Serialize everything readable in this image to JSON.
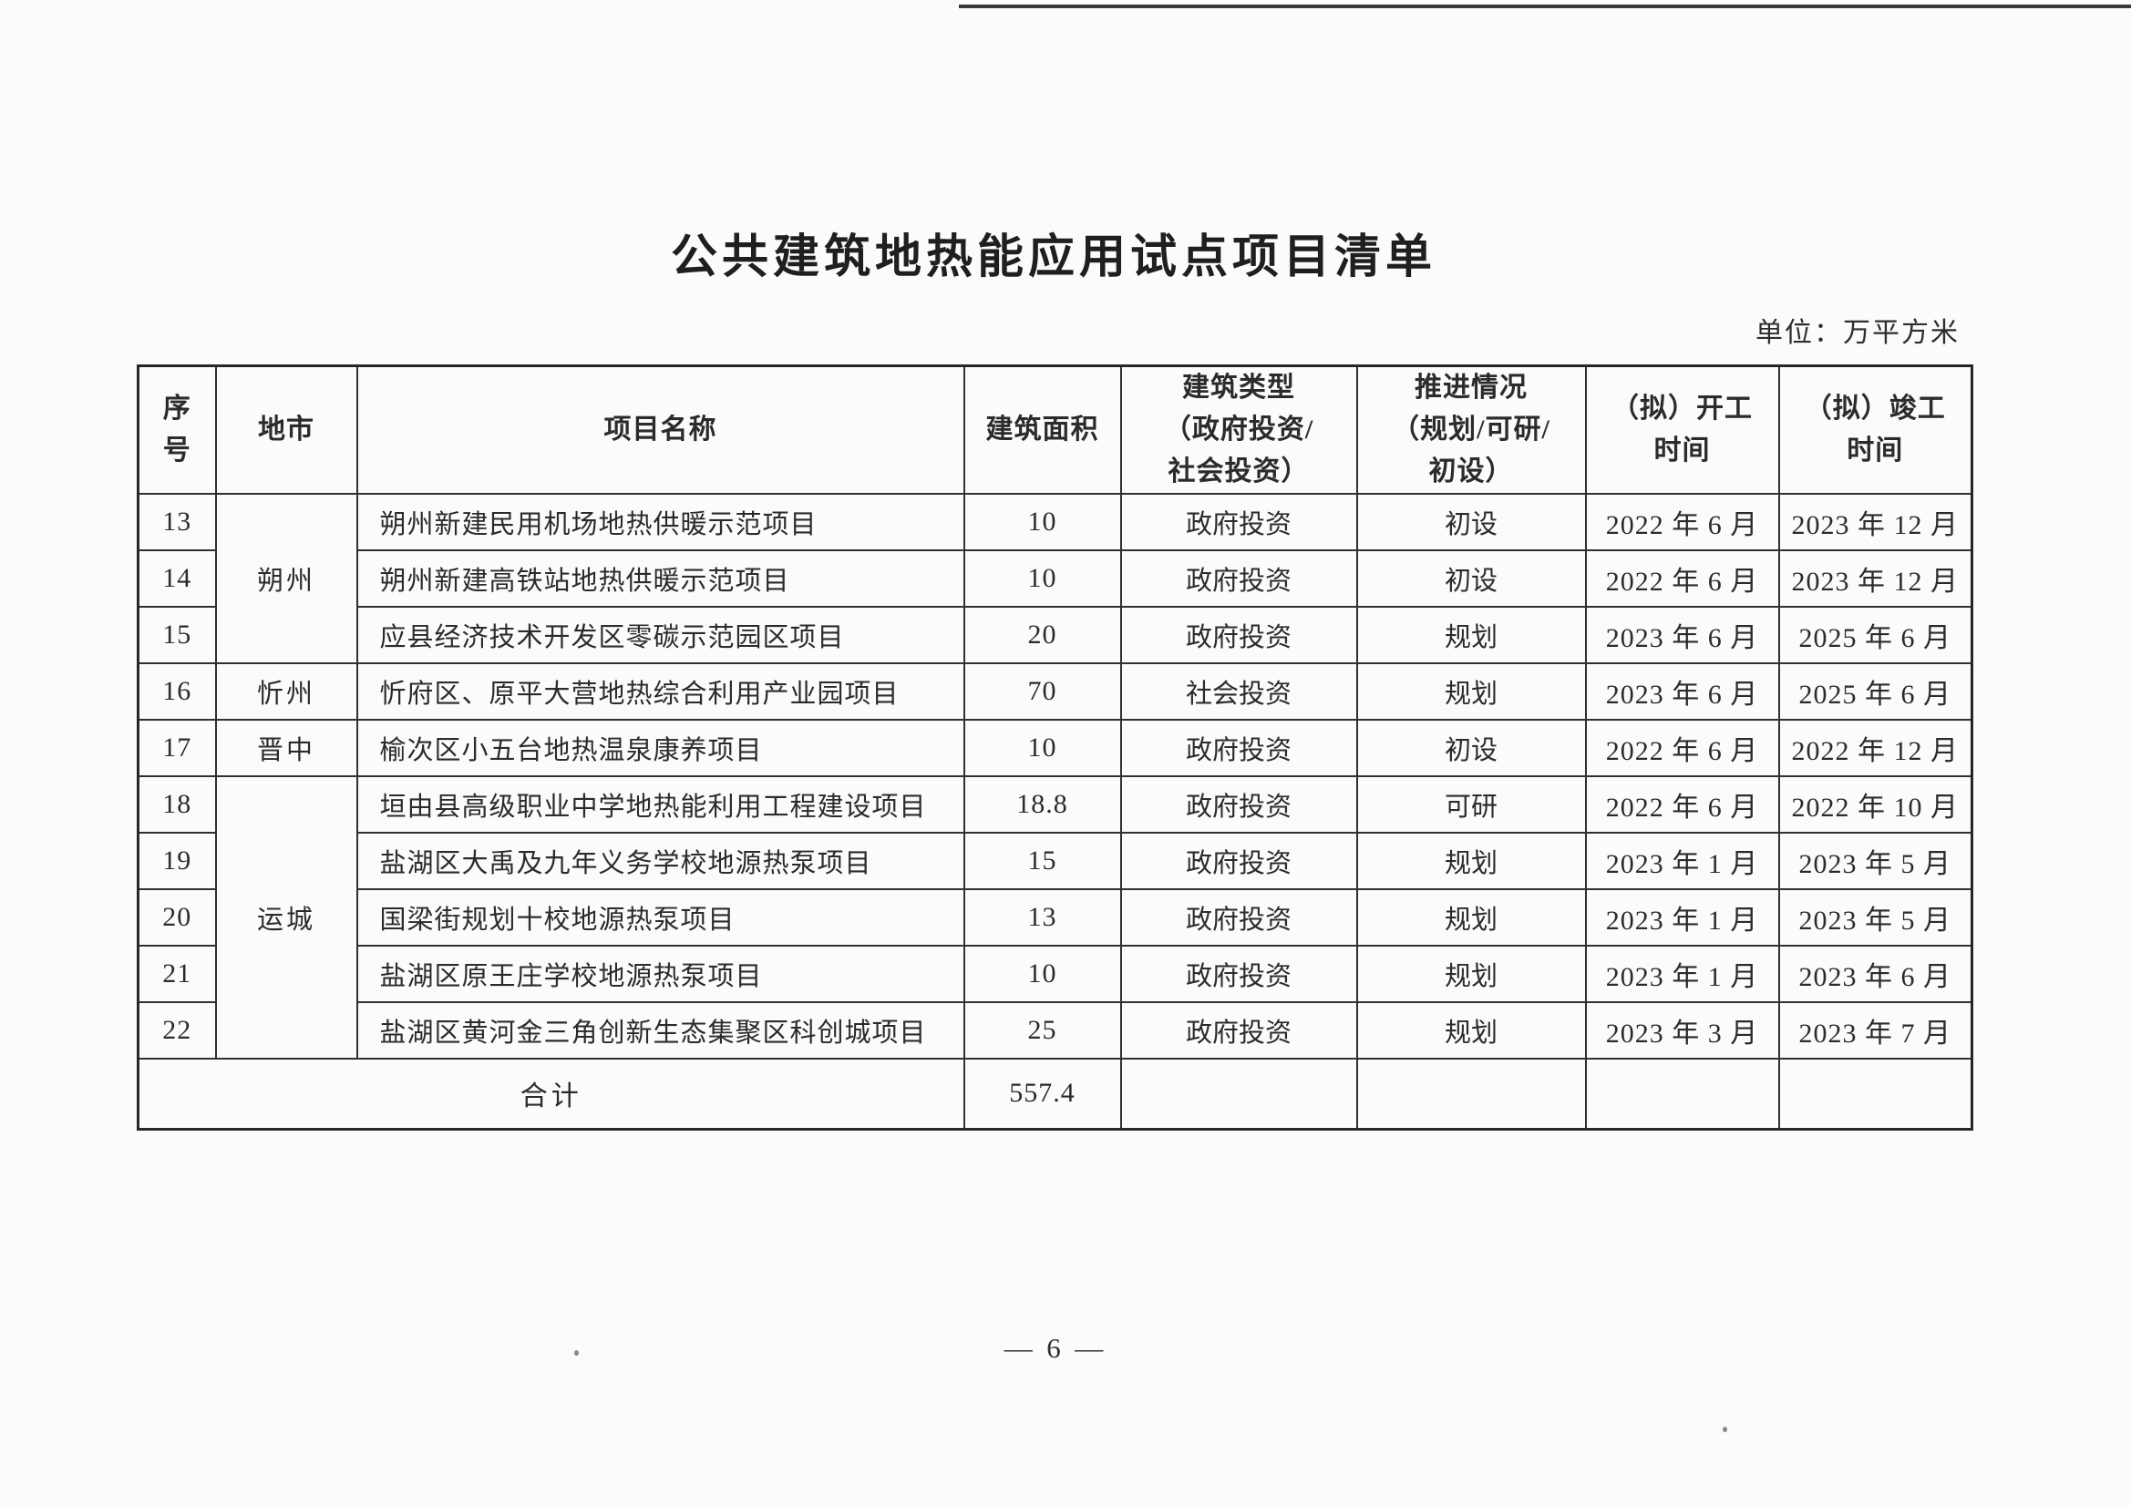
{
  "page": {
    "title": "公共建筑地热能应用试点项目清单",
    "unit_note": "单位：万平方米",
    "page_number": "—  6  —"
  },
  "table": {
    "columns": [
      {
        "key": "no",
        "label": "序\n号"
      },
      {
        "key": "city",
        "label": "地市"
      },
      {
        "key": "name",
        "label": "项目名称"
      },
      {
        "key": "area",
        "label": "建筑面积"
      },
      {
        "key": "type",
        "label": "建筑类型\n（政府投资/\n社会投资）"
      },
      {
        "key": "status",
        "label": "推进情况\n（规划/可研/\n初设）"
      },
      {
        "key": "start",
        "label": "（拟）开工\n时间"
      },
      {
        "key": "end",
        "label": "（拟）竣工\n时间"
      }
    ],
    "rows": [
      {
        "no": "13",
        "city": "朔州",
        "city_rowspan": 3,
        "name": "朔州新建民用机场地热供暖示范项目",
        "area": "10",
        "type": "政府投资",
        "status": "初设",
        "start": "2022 年 6 月",
        "end": "2023 年 12 月"
      },
      {
        "no": "14",
        "name": "朔州新建高铁站地热供暖示范项目",
        "area": "10",
        "type": "政府投资",
        "status": "初设",
        "start": "2022 年 6 月",
        "end": "2023 年 12 月"
      },
      {
        "no": "15",
        "name": "应县经济技术开发区零碳示范园区项目",
        "area": "20",
        "type": "政府投资",
        "status": "规划",
        "start": "2023 年 6 月",
        "end": "2025 年 6 月"
      },
      {
        "no": "16",
        "city": "忻州",
        "city_rowspan": 1,
        "name": "忻府区、原平大营地热综合利用产业园项目",
        "area": "70",
        "type": "社会投资",
        "status": "规划",
        "start": "2023 年 6 月",
        "end": "2025 年 6 月"
      },
      {
        "no": "17",
        "city": "晋中",
        "city_rowspan": 1,
        "name": "榆次区小五台地热温泉康养项目",
        "area": "10",
        "type": "政府投资",
        "status": "初设",
        "start": "2022 年 6 月",
        "end": "2022 年 12 月"
      },
      {
        "no": "18",
        "city": "运城",
        "city_rowspan": 5,
        "name": "垣由县高级职业中学地热能利用工程建设项目",
        "area": "18.8",
        "type": "政府投资",
        "status": "可研",
        "start": "2022 年 6 月",
        "end": "2022 年 10 月"
      },
      {
        "no": "19",
        "name": "盐湖区大禹及九年义务学校地源热泵项目",
        "area": "15",
        "type": "政府投资",
        "status": "规划",
        "start": "2023 年 1 月",
        "end": "2023 年 5 月"
      },
      {
        "no": "20",
        "name": "国梁街规划十校地源热泵项目",
        "area": "13",
        "type": "政府投资",
        "status": "规划",
        "start": "2023 年 1 月",
        "end": "2023 年 5 月"
      },
      {
        "no": "21",
        "name": "盐湖区原王庄学校地源热泵项目",
        "area": "10",
        "type": "政府投资",
        "status": "规划",
        "start": "2023 年 1 月",
        "end": "2023 年 6 月"
      },
      {
        "no": "22",
        "name": "盐湖区黄河金三角创新生态集聚区科创城项目",
        "area": "25",
        "type": "政府投资",
        "status": "规划",
        "start": "2023 年 3 月",
        "end": "2023 年 7 月"
      }
    ],
    "total_row": {
      "label": "合计",
      "area": "557.4",
      "type": "",
      "status": "",
      "start": "",
      "end": ""
    }
  }
}
